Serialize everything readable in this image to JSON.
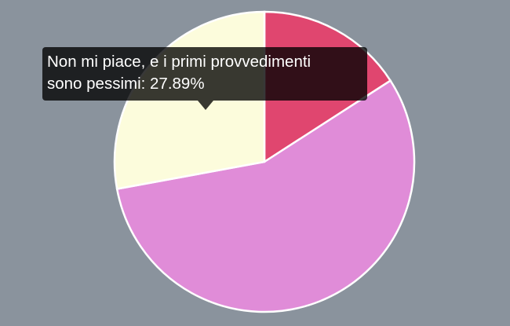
{
  "chart_data": {
    "type": "pie",
    "slices": [
      {
        "value": 15.9,
        "color": "#e0466f"
      },
      {
        "value": 56.21,
        "color": "#e08cd8"
      },
      {
        "label": "Non mi piace, e i primi provvedimenti sono pessimi",
        "value": 27.89,
        "color": "#fcfcdc"
      }
    ],
    "start_angle": "top",
    "direction": "clockwise",
    "background": "#8a939d"
  },
  "tooltip": {
    "line1": "Non mi piace, e i primi provvedimenti",
    "line2": "sono pessimi: 27.89%"
  }
}
